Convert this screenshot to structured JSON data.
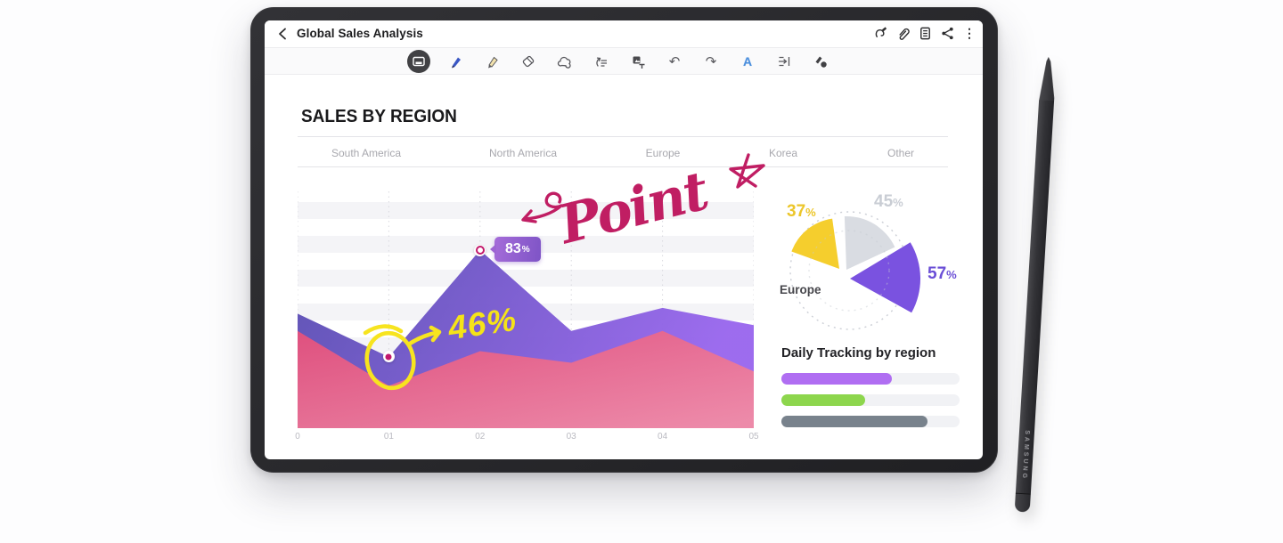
{
  "window": {
    "title": "Global Sales Analysis",
    "back_icon": "chevron-left-icon",
    "action_icons": [
      "spen-gesture-icon",
      "attach-icon",
      "reader-view-icon",
      "share-icon",
      "more-icon"
    ]
  },
  "toolbar": {
    "tools": [
      {
        "icon": "card-view-icon",
        "selected": true
      },
      {
        "icon": "pen-icon"
      },
      {
        "icon": "highlighter-icon"
      },
      {
        "icon": "eraser-icon"
      },
      {
        "icon": "lasso-select-icon"
      },
      {
        "icon": "convert-to-text-icon"
      },
      {
        "icon": "insert-text-icon"
      },
      {
        "icon": "undo-icon",
        "glyph": "↶"
      },
      {
        "icon": "redo-icon",
        "glyph": "↷"
      },
      {
        "icon": "handwriting-assist-icon",
        "glyph": "A"
      },
      {
        "icon": "text-spacing-icon"
      },
      {
        "icon": "pen-style-icon"
      }
    ]
  },
  "document": {
    "title": "SALES BY REGION",
    "tabs": [
      "South America",
      "North America",
      "Europe",
      "Korea",
      "Other"
    ]
  },
  "chart_data": [
    {
      "type": "area",
      "title": "SALES BY REGION",
      "x": [
        "0",
        "01",
        "02",
        "03",
        "04",
        "05"
      ],
      "series": [
        {
          "name": "purple",
          "color_start": "#5a4fb2",
          "color_end": "#9a68ee",
          "values": [
            61,
            46,
            83,
            55,
            63,
            57
          ]
        },
        {
          "name": "pink",
          "color_start": "#e4507c",
          "color_end": "#f08ba6",
          "values": [
            55,
            36,
            48,
            44,
            55,
            41
          ]
        }
      ],
      "ylim": [
        0,
        100
      ],
      "grid": "vertical-dotted",
      "annotations": [
        {
          "type": "badge",
          "num": "83",
          "unit": "%",
          "series": "purple",
          "index": 2
        },
        {
          "type": "handwritten-yellow",
          "text": "46%",
          "series": "purple",
          "index": 1
        },
        {
          "type": "handwritten-crimson",
          "text": "Point"
        },
        {
          "type": "doodle",
          "text": "",
          "shapes": [
            "yellow-circle",
            "yellow-arrow",
            "crimson-curl-arrow",
            "crimson-star"
          ]
        }
      ]
    },
    {
      "type": "pie",
      "caption": "Europe",
      "slices": [
        {
          "label": "45",
          "unit": "%",
          "value": 45,
          "color": "#d9dce2",
          "apex": [
            89,
            94
          ],
          "r": 60,
          "start": 268,
          "end": 335
        },
        {
          "label": "37",
          "unit": "%",
          "value": 37,
          "color": "#f5ce2d",
          "apex": [
            81,
            93
          ],
          "r": 57,
          "start": 200,
          "end": 262
        },
        {
          "label": "57",
          "unit": "%",
          "value": 57,
          "color": "#7a52e0",
          "apex": [
            93,
            104
          ],
          "r": 79,
          "start": 329,
          "end": 389
        }
      ],
      "legend_position": "around"
    },
    {
      "type": "bar",
      "orientation": "horizontal",
      "title": "Daily Tracking by region",
      "values": [
        62,
        47,
        82
      ],
      "colors": [
        "#b06ef2",
        "#8dd64d",
        "#78828c"
      ],
      "xlim": [
        0,
        100
      ]
    }
  ],
  "pen": {
    "brand": "SAMSUNG"
  }
}
